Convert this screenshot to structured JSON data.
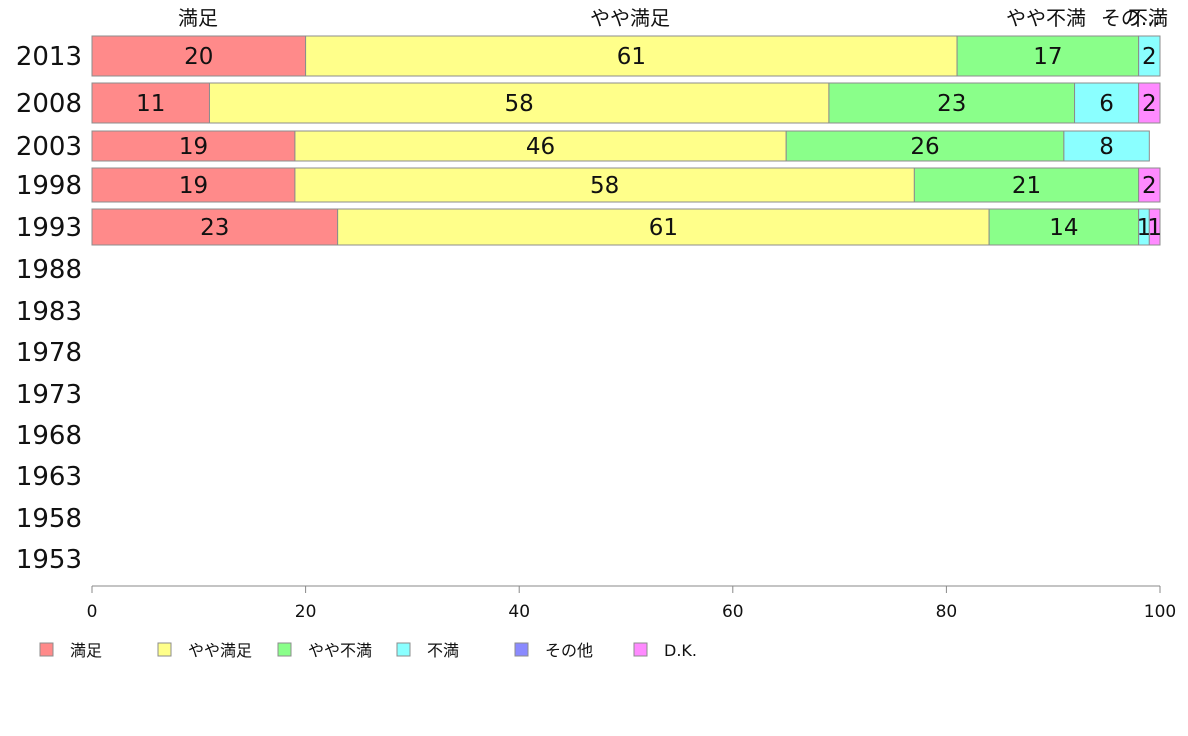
{
  "chart_data": {
    "type": "bar",
    "orientation": "horizontal",
    "stacked": true,
    "title": "",
    "xlabel": "",
    "ylabel": "",
    "xlim": [
      0,
      100
    ],
    "x_ticks": [
      0,
      20,
      40,
      60,
      80,
      100
    ],
    "categories": [
      "2013",
      "2008",
      "2003",
      "1998",
      "1993",
      "1988",
      "1983",
      "1978",
      "1973",
      "1968",
      "1963",
      "1958",
      "1953"
    ],
    "top_category_labels": [
      "満足",
      "やや満足",
      "やや不満",
      "不満",
      "その..."
    ],
    "series": [
      {
        "name": "満足",
        "color": "#ff8a8a",
        "values": [
          20,
          11,
          19,
          19,
          23,
          null,
          null,
          null,
          null,
          null,
          null,
          null,
          null
        ]
      },
      {
        "name": "やや満足",
        "color": "#ffff8a",
        "values": [
          61,
          58,
          46,
          58,
          61,
          null,
          null,
          null,
          null,
          null,
          null,
          null,
          null
        ]
      },
      {
        "name": "やや不満",
        "color": "#8aff8a",
        "values": [
          17,
          23,
          26,
          21,
          14,
          null,
          null,
          null,
          null,
          null,
          null,
          null,
          null
        ]
      },
      {
        "name": "不満",
        "color": "#8affff",
        "values": [
          2,
          6,
          8,
          0,
          1,
          null,
          null,
          null,
          null,
          null,
          null,
          null,
          null
        ]
      },
      {
        "name": "その他",
        "color": "#8a8aff",
        "values": [
          0,
          0,
          0,
          0,
          0,
          null,
          null,
          null,
          null,
          null,
          null,
          null,
          null
        ]
      },
      {
        "name": "D.K.",
        "color": "#ff8aff",
        "values": [
          0,
          2,
          0,
          2,
          1,
          null,
          null,
          null,
          null,
          null,
          null,
          null,
          null
        ]
      }
    ],
    "legend_position": "bottom",
    "grid": false
  }
}
